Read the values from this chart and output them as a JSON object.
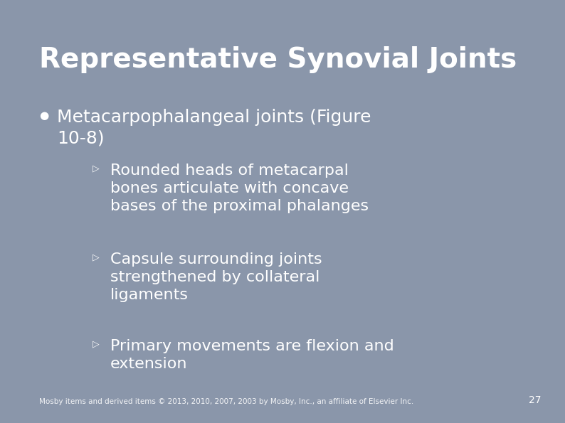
{
  "title": "Representative Synovial Joints",
  "title_fontsize": 28,
  "title_color": "#ffffff",
  "bullet_marker": "●",
  "bullet_text": "Metacarpophalangeal joints (Figure\n10-8)",
  "bullet_fontsize": 18,
  "sub_bullets": [
    "Rounded heads of metacarpal\nbones articulate with concave\nbases of the proximal phalanges",
    "Capsule surrounding joints\nstrengthened by collateral\nligaments",
    "Primary movements are flexion and\nextension"
  ],
  "sub_bullet_marker": "Ø",
  "sub_bullet_fontsize": 16,
  "text_color": "#ffffff",
  "footer_text": "Mosby items and derived items © 2013, 2010, 2007, 2003 by Mosby, Inc., an affiliate of Elsevier Inc.",
  "footer_fontsize": 7.5,
  "page_number": "27",
  "page_number_fontsize": 10,
  "bg_outer_color": "#8a96aa",
  "bg_inner_color": "#3a5080",
  "title_area_color": "#8a96aa",
  "content_panel_color": "#3d5282"
}
